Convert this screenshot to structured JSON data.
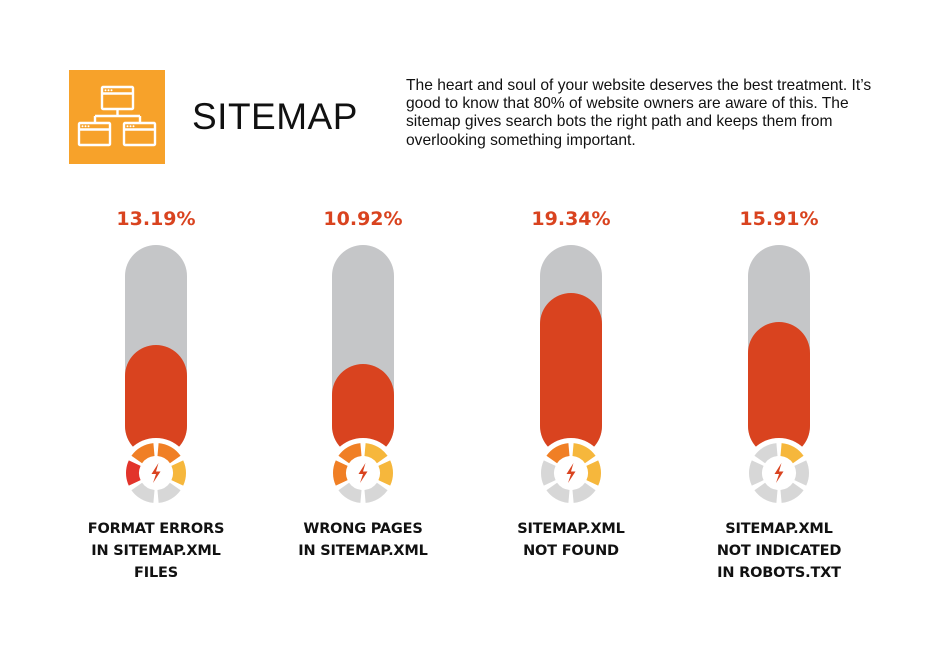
{
  "header": {
    "icon": "sitemap-icon",
    "title": "SITEMAP",
    "description": "The heart and soul of your website deserves the best treatment. It’s good to know that 80% of website owners are aware of this. The sitemap gives search bots the right path and keeps them from overlooking something important."
  },
  "colors": {
    "accent": "#d9431f",
    "track": "#c5c6c8",
    "icon_bg": "#f7a22a",
    "gauge_red": "#e2342b",
    "gauge_orange": "#f07f25",
    "gauge_yellow": "#f6b73c",
    "gauge_gray": "#d7d7d7"
  },
  "chart_data": {
    "type": "bar",
    "fill_scale_max": 25,
    "categories": [
      "FORMAT ERRORS IN SITEMAP.XML FILES",
      "WRONG PAGES IN SITEMAP.XML",
      "SITEMAP.XML NOT FOUND",
      "SITEMAP.XML NOT INDICATED IN ROBOTS.TXT"
    ],
    "values": [
      13.19,
      10.92,
      19.34,
      15.91
    ],
    "value_labels": [
      "13.19%",
      "10.92%",
      "19.34%",
      "15.91%"
    ],
    "label_lines": [
      [
        "FORMAT ERRORS",
        "IN SITEMAP.XML",
        "FILES"
      ],
      [
        "WRONG PAGES",
        "IN SITEMAP.XML"
      ],
      [
        "SITEMAP.XML",
        "NOT FOUND"
      ],
      [
        "SITEMAP.XML",
        "NOT INDICATED",
        "IN ROBOTS.TXT"
      ]
    ],
    "gauge_icon": "lightning-gauge-icon",
    "gauge_segment_colors": [
      [
        "red",
        "orange",
        "orange",
        "yellow",
        "gray",
        "gray"
      ],
      [
        "orange",
        "orange",
        "yellow",
        "yellow",
        "gray",
        "gray"
      ],
      [
        "gray",
        "orange",
        "yellow",
        "yellow",
        "gray",
        "gray"
      ],
      [
        "gray",
        "gray",
        "yellow",
        "gray",
        "gray",
        "gray"
      ]
    ]
  }
}
